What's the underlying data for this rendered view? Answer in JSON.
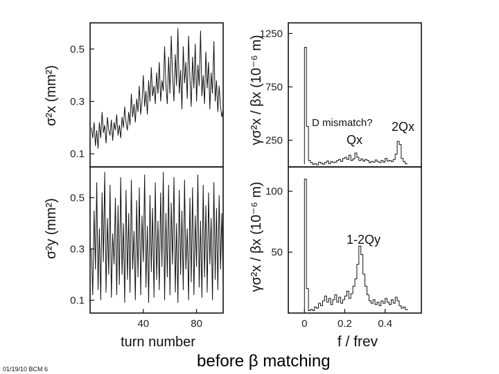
{
  "caption": "before β matching",
  "footer": "01/19/10 BCM 6",
  "colors": {
    "ink": "#111111",
    "background": "#ffffff"
  },
  "chart_data": [
    {
      "id": "sx_vs_turn",
      "type": "line",
      "ylabel": "σ²x (mm²)",
      "xlabel": "",
      "ylim": [
        0.05,
        0.6
      ],
      "xlim": [
        0,
        100
      ],
      "yticks": [
        "0.1",
        "0.3",
        "0.5"
      ],
      "xticks": [],
      "grid": false,
      "series": [
        {
          "x": [
            1,
            2,
            3,
            4,
            5,
            6,
            7,
            8,
            9,
            10,
            11,
            12,
            13,
            14,
            15,
            16,
            17,
            18,
            19,
            20,
            21,
            22,
            23,
            24,
            25,
            26,
            27,
            28,
            29,
            30,
            31,
            32,
            33,
            34,
            35,
            36,
            37,
            38,
            39,
            40,
            41,
            42,
            43,
            44,
            45,
            46,
            47,
            48,
            49,
            50,
            51,
            52,
            53,
            54,
            55,
            56,
            57,
            58,
            59,
            60,
            61,
            62,
            63,
            64,
            65,
            66,
            67,
            68,
            69,
            70,
            71,
            72,
            73,
            74,
            75,
            76,
            77,
            78,
            79,
            80,
            81,
            82,
            83,
            84,
            85,
            86,
            87,
            88,
            89,
            90,
            91,
            92,
            93,
            94,
            95,
            96,
            97,
            98,
            99,
            100
          ],
          "y": [
            0.2,
            0.16,
            0.22,
            0.13,
            0.19,
            0.12,
            0.22,
            0.16,
            0.26,
            0.18,
            0.21,
            0.14,
            0.24,
            0.19,
            0.17,
            0.23,
            0.15,
            0.22,
            0.19,
            0.25,
            0.17,
            0.21,
            0.16,
            0.24,
            0.2,
            0.28,
            0.22,
            0.19,
            0.26,
            0.21,
            0.33,
            0.24,
            0.29,
            0.22,
            0.31,
            0.26,
            0.36,
            0.25,
            0.3,
            0.4,
            0.28,
            0.34,
            0.25,
            0.38,
            0.3,
            0.43,
            0.32,
            0.36,
            0.29,
            0.41,
            0.33,
            0.45,
            0.3,
            0.38,
            0.34,
            0.51,
            0.36,
            0.29,
            0.47,
            0.33,
            0.55,
            0.4,
            0.3,
            0.48,
            0.36,
            0.58,
            0.33,
            0.42,
            0.27,
            0.51,
            0.37,
            0.45,
            0.31,
            0.55,
            0.39,
            0.28,
            0.47,
            0.35,
            0.52,
            0.3,
            0.44,
            0.36,
            0.57,
            0.32,
            0.4,
            0.29,
            0.49,
            0.35,
            0.45,
            0.27,
            0.41,
            0.33,
            0.53,
            0.3,
            0.38,
            0.26,
            0.36,
            0.28,
            0.24,
            0.27
          ]
        }
      ]
    },
    {
      "id": "fft_x",
      "type": "line",
      "ylabel": "γσ²x / βx (10⁻⁶ m)",
      "xlabel": "",
      "ylim": [
        0,
        1350
      ],
      "xlim": [
        -0.08,
        0.58
      ],
      "yticks": [
        "250",
        "750",
        "1250"
      ],
      "xticks": [],
      "grid": false,
      "annotations": [
        "D mismatch?",
        "2Qx",
        "Qx"
      ],
      "series": [
        {
          "x": [
            0.0,
            0.01,
            0.02,
            0.03,
            0.04,
            0.05,
            0.06,
            0.07,
            0.08,
            0.09,
            0.1,
            0.11,
            0.12,
            0.13,
            0.14,
            0.15,
            0.16,
            0.17,
            0.18,
            0.19,
            0.2,
            0.21,
            0.22,
            0.23,
            0.24,
            0.25,
            0.26,
            0.27,
            0.28,
            0.29,
            0.3,
            0.31,
            0.32,
            0.33,
            0.34,
            0.35,
            0.36,
            0.37,
            0.38,
            0.39,
            0.4,
            0.41,
            0.42,
            0.43,
            0.44,
            0.45,
            0.46,
            0.47,
            0.48,
            0.49,
            0.5
          ],
          "y": [
            1120,
            380,
            60,
            40,
            25,
            30,
            20,
            45,
            35,
            25,
            40,
            55,
            30,
            50,
            40,
            45,
            60,
            70,
            50,
            80,
            90,
            70,
            110,
            60,
            75,
            130,
            90,
            60,
            75,
            55,
            70,
            60,
            40,
            50,
            45,
            65,
            50,
            40,
            60,
            45,
            80,
            55,
            60,
            50,
            70,
            120,
            240,
            210,
            80,
            50,
            30
          ]
        }
      ]
    },
    {
      "id": "sy_vs_turn",
      "type": "line",
      "ylabel": "σ²y (mm²)",
      "xlabel": "turn number",
      "ylim": [
        0.05,
        0.62
      ],
      "xlim": [
        0,
        100
      ],
      "yticks": [
        "0.1",
        "0.3",
        "0.5"
      ],
      "xticks": [
        "40",
        "80"
      ],
      "grid": false,
      "series": [
        {
          "x": [
            1,
            2,
            3,
            4,
            5,
            6,
            7,
            8,
            9,
            10,
            11,
            12,
            13,
            14,
            15,
            16,
            17,
            18,
            19,
            20,
            21,
            22,
            23,
            24,
            25,
            26,
            27,
            28,
            29,
            30,
            31,
            32,
            33,
            34,
            35,
            36,
            37,
            38,
            39,
            40,
            41,
            42,
            43,
            44,
            45,
            46,
            47,
            48,
            49,
            50,
            51,
            52,
            53,
            54,
            55,
            56,
            57,
            58,
            59,
            60,
            61,
            62,
            63,
            64,
            65,
            66,
            67,
            68,
            69,
            70,
            71,
            72,
            73,
            74,
            75,
            76,
            77,
            78,
            79,
            80,
            81,
            82,
            83,
            84,
            85,
            86,
            87,
            88,
            89,
            90,
            91,
            92,
            93,
            94,
            95,
            96,
            97,
            98,
            99,
            100
          ],
          "y": [
            0.3,
            0.12,
            0.45,
            0.22,
            0.56,
            0.14,
            0.38,
            0.1,
            0.52,
            0.25,
            0.6,
            0.13,
            0.42,
            0.2,
            0.55,
            0.11,
            0.36,
            0.24,
            0.5,
            0.12,
            0.47,
            0.16,
            0.58,
            0.2,
            0.4,
            0.09,
            0.53,
            0.18,
            0.44,
            0.13,
            0.57,
            0.22,
            0.37,
            0.1,
            0.49,
            0.19,
            0.54,
            0.12,
            0.43,
            0.25,
            0.59,
            0.15,
            0.39,
            0.09,
            0.51,
            0.21,
            0.46,
            0.11,
            0.56,
            0.18,
            0.41,
            0.14,
            0.52,
            0.23,
            0.6,
            0.1,
            0.44,
            0.19,
            0.55,
            0.12,
            0.48,
            0.24,
            0.58,
            0.13,
            0.4,
            0.09,
            0.53,
            0.2,
            0.45,
            0.14,
            0.57,
            0.22,
            0.38,
            0.1,
            0.5,
            0.17,
            0.54,
            0.12,
            0.43,
            0.23,
            0.59,
            0.15,
            0.41,
            0.11,
            0.55,
            0.19,
            0.47,
            0.13,
            0.52,
            0.24,
            0.42,
            0.1,
            0.56,
            0.18,
            0.46,
            0.14,
            0.51,
            0.22,
            0.44,
            0.16
          ]
        }
      ]
    },
    {
      "id": "fft_y",
      "type": "line",
      "ylabel": "γσ²x / βx (10⁻⁶ m)",
      "xlabel": "f / frev",
      "ylim": [
        0,
        120
      ],
      "xlim": [
        -0.08,
        0.58
      ],
      "yticks": [
        "50",
        "100"
      ],
      "xticks": [
        "0",
        "0.2",
        "0.4"
      ],
      "grid": false,
      "annotations": [
        "1-2Qy"
      ],
      "series": [
        {
          "x": [
            0.0,
            0.01,
            0.02,
            0.03,
            0.04,
            0.05,
            0.06,
            0.07,
            0.08,
            0.09,
            0.1,
            0.11,
            0.12,
            0.13,
            0.14,
            0.15,
            0.16,
            0.17,
            0.18,
            0.19,
            0.2,
            0.21,
            0.22,
            0.23,
            0.24,
            0.25,
            0.26,
            0.27,
            0.28,
            0.29,
            0.3,
            0.31,
            0.32,
            0.33,
            0.34,
            0.35,
            0.36,
            0.37,
            0.38,
            0.39,
            0.4,
            0.41,
            0.42,
            0.43,
            0.44,
            0.45,
            0.46,
            0.47,
            0.48,
            0.49,
            0.5
          ],
          "y": [
            110,
            20,
            2,
            3,
            2,
            5,
            4,
            8,
            6,
            10,
            14,
            9,
            12,
            7,
            11,
            15,
            9,
            13,
            8,
            11,
            14,
            18,
            12,
            16,
            22,
            28,
            40,
            55,
            48,
            32,
            22,
            15,
            10,
            8,
            11,
            7,
            9,
            6,
            10,
            8,
            12,
            9,
            7,
            11,
            8,
            13,
            10,
            6,
            4,
            5,
            3
          ]
        }
      ]
    }
  ]
}
